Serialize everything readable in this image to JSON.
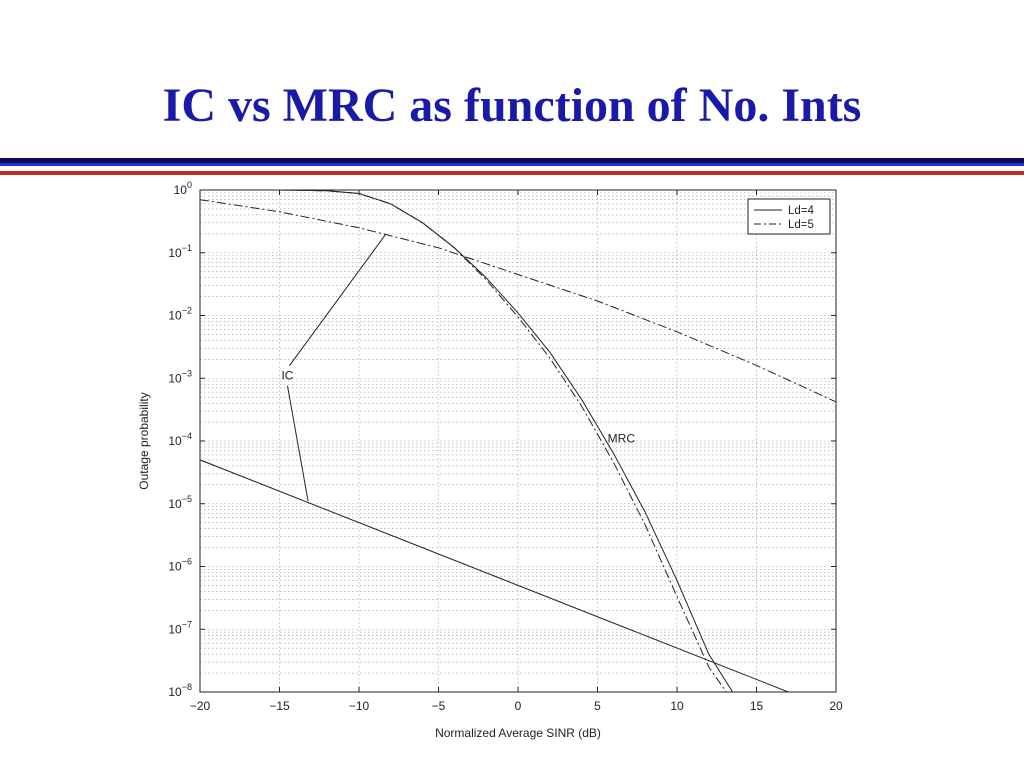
{
  "slide": {
    "title": "IC vs MRC as function of No. Ints",
    "colors": {
      "title": "#1a1aa8",
      "rule_navy": "#0b0b52",
      "rule_blue": "#1f2fd6",
      "rule_red": "#c42a2a"
    }
  },
  "chart_data": {
    "type": "line",
    "title": "",
    "xlabel": "Normalized Average SINR (dB)",
    "ylabel": "Outage probability",
    "xlim": [
      -20,
      20
    ],
    "ylim": [
      1e-08,
      1
    ],
    "yscale": "log",
    "grid": true,
    "x_ticks": [
      -20,
      -15,
      -10,
      -5,
      0,
      5,
      10,
      15,
      20
    ],
    "x_tick_labels": [
      "−20",
      "−15",
      "−10",
      "−5",
      "0",
      "5",
      "10",
      "15",
      "20"
    ],
    "y_tick_exponents": [
      0,
      -1,
      -2,
      -3,
      -4,
      -5,
      -6,
      -7,
      -8
    ],
    "legend": {
      "position": "top-right",
      "entries": [
        {
          "label": "Ld=4",
          "style": "solid"
        },
        {
          "label": "Ld=5",
          "style": "dashdot"
        }
      ]
    },
    "series": [
      {
        "name": "Ld=4",
        "group": "MRC",
        "style": "solid",
        "x": [
          -15,
          -12,
          -10,
          -8,
          -6,
          -4,
          -2,
          0,
          2,
          4,
          6,
          8,
          10,
          12,
          13.5
        ],
        "y": [
          1.0,
          0.97,
          0.88,
          0.6,
          0.3,
          0.12,
          0.04,
          0.011,
          0.0026,
          0.00046,
          6.4e-05,
          7.3e-06,
          6e-07,
          4e-08,
          1e-08
        ]
      },
      {
        "name": "Ld=5",
        "group": "MRC",
        "style": "dashdot",
        "x": [
          -15,
          -12,
          -10,
          -8,
          -6,
          -4,
          -2,
          0,
          2,
          4,
          6,
          8,
          10,
          12,
          13.1
        ],
        "y": [
          1.0,
          0.97,
          0.88,
          0.6,
          0.3,
          0.12,
          0.037,
          0.0095,
          0.0021,
          0.00036,
          4.6e-05,
          4.6e-06,
          3.3e-07,
          2.5e-08,
          1e-08
        ]
      },
      {
        "name": "Ld=4",
        "group": "IC",
        "style": "solid",
        "x": [
          -20,
          17
        ],
        "y": [
          5e-05,
          1e-08
        ]
      },
      {
        "name": "Ld=5",
        "group": "IC",
        "style": "dashdot",
        "x": [
          -20,
          -15,
          -10,
          -5,
          0,
          5,
          10,
          15,
          20
        ],
        "y": [
          0.7,
          0.45,
          0.25,
          0.12,
          0.045,
          0.017,
          0.0055,
          0.0016,
          0.00042
        ]
      }
    ],
    "annotations": [
      {
        "text": "IC",
        "at": [
          -14.5,
          0.0011
        ],
        "pointers": [
          [
            -8.3,
            0.2
          ],
          [
            -13.2,
            1.1e-05
          ]
        ]
      },
      {
        "text": "MRC",
        "at": [
          6.5,
          0.00011
        ],
        "pointers": []
      }
    ]
  }
}
